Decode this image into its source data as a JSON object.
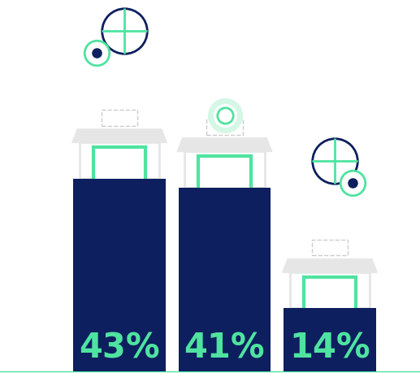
{
  "chart_data": {
    "type": "bar",
    "categories": [
      null,
      null,
      null
    ],
    "values": [
      43,
      41,
      14
    ],
    "value_labels": [
      "43%",
      "41%",
      "14%"
    ],
    "data_labels": true,
    "tick_labels": false,
    "color": "#0d1f5f",
    "ylim": [
      0,
      83
    ]
  }
}
